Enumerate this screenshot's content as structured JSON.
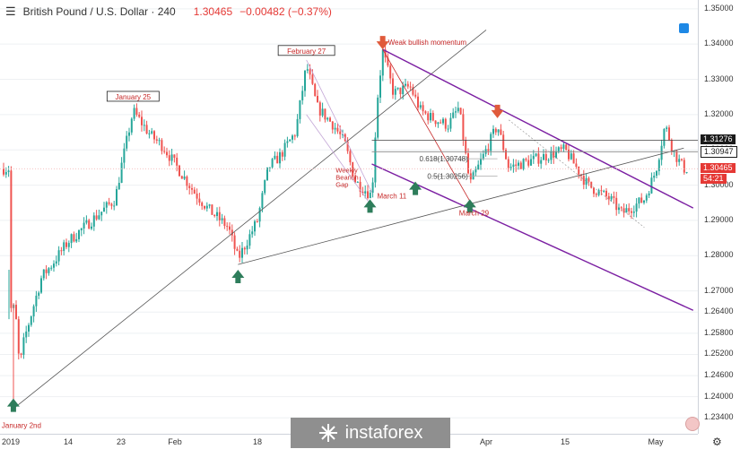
{
  "header": {
    "symbol": "British Pound / U.S. Dollar · 240",
    "last": "1.30465",
    "change": "−0.00482 (−0.37%)"
  },
  "price_tags": {
    "level_1": "1.31276",
    "level_2": "1.30947",
    "current": "1.30465",
    "countdown": "54:21"
  },
  "logo": {
    "text": "instaforex"
  },
  "colors": {
    "bull_candle": "#26a69a",
    "bear_candle": "#ef5350",
    "channel": "#7b1fa2",
    "trendline": "#555555",
    "annotation": "#c62828",
    "arrow_up": "#2e7d5b",
    "arrow_down": "#e05a3a"
  },
  "chart_data": {
    "type": "candlestick",
    "title": "British Pound / U.S. Dollar · 240",
    "ylim": [
      1.2295,
      1.3525
    ],
    "y_ticks": [
      "1.35000",
      "1.34000",
      "1.33000",
      "1.32000",
      "1.31000",
      "1.30000",
      "1.29000",
      "1.28000",
      "1.27000",
      "1.26400",
      "1.25800",
      "1.25200",
      "1.24600",
      "1.24000",
      "1.23400"
    ],
    "x_ticks": [
      "2019",
      "14",
      "23",
      "Feb",
      "18",
      "Apr",
      "15",
      "May"
    ],
    "close_series": [
      {
        "x": "2019-01-02",
        "y": 1.265
      },
      {
        "x": "2019-01-03",
        "y": 1.248
      },
      {
        "x": "2019-01-04",
        "y": 1.256
      },
      {
        "x": "2019-01-08",
        "y": 1.274
      },
      {
        "x": "2019-01-10",
        "y": 1.277
      },
      {
        "x": "2019-01-14",
        "y": 1.284
      },
      {
        "x": "2019-01-16",
        "y": 1.287
      },
      {
        "x": "2019-01-18",
        "y": 1.29
      },
      {
        "x": "2019-01-22",
        "y": 1.296
      },
      {
        "x": "2019-01-23",
        "y": 1.305
      },
      {
        "x": "2019-01-25",
        "y": 1.321
      },
      {
        "x": "2019-01-28",
        "y": 1.314
      },
      {
        "x": "2019-01-30",
        "y": 1.311
      },
      {
        "x": "2019-02-01",
        "y": 1.306
      },
      {
        "x": "2019-02-05",
        "y": 1.298
      },
      {
        "x": "2019-02-08",
        "y": 1.293
      },
      {
        "x": "2019-02-12",
        "y": 1.288
      },
      {
        "x": "2019-02-14",
        "y": 1.279
      },
      {
        "x": "2019-02-18",
        "y": 1.29
      },
      {
        "x": "2019-02-20",
        "y": 1.305
      },
      {
        "x": "2019-02-22",
        "y": 1.308
      },
      {
        "x": "2019-02-25",
        "y": 1.315
      },
      {
        "x": "2019-02-27",
        "y": 1.334
      },
      {
        "x": "2019-03-01",
        "y": 1.322
      },
      {
        "x": "2019-03-04",
        "y": 1.317
      },
      {
        "x": "2019-03-06",
        "y": 1.312
      },
      {
        "x": "2019-03-08",
        "y": 1.301
      },
      {
        "x": "2019-03-11",
        "y": 1.297
      },
      {
        "x": "2019-03-12",
        "y": 1.324
      },
      {
        "x": "2019-03-13",
        "y": 1.338
      },
      {
        "x": "2019-03-15",
        "y": 1.326
      },
      {
        "x": "2019-03-18",
        "y": 1.328
      },
      {
        "x": "2019-03-20",
        "y": 1.321
      },
      {
        "x": "2019-03-22",
        "y": 1.319
      },
      {
        "x": "2019-03-25",
        "y": 1.317
      },
      {
        "x": "2019-03-27",
        "y": 1.322
      },
      {
        "x": "2019-03-29",
        "y": 1.3
      },
      {
        "x": "2019-04-01",
        "y": 1.31
      },
      {
        "x": "2019-04-03",
        "y": 1.317
      },
      {
        "x": "2019-04-05",
        "y": 1.305
      },
      {
        "x": "2019-04-09",
        "y": 1.307
      },
      {
        "x": "2019-04-11",
        "y": 1.308
      },
      {
        "x": "2019-04-15",
        "y": 1.31
      },
      {
        "x": "2019-04-17",
        "y": 1.305
      },
      {
        "x": "2019-04-19",
        "y": 1.3
      },
      {
        "x": "2019-04-23",
        "y": 1.296
      },
      {
        "x": "2019-04-25",
        "y": 1.292
      },
      {
        "x": "2019-04-29",
        "y": 1.296
      },
      {
        "x": "2019-05-01",
        "y": 1.304
      },
      {
        "x": "2019-05-03",
        "y": 1.317
      },
      {
        "x": "2019-05-05",
        "y": 1.309
      },
      {
        "x": "2019-05-07",
        "y": 1.3047
      }
    ],
    "annotations": [
      {
        "text": "January 25",
        "x": "2019-01-25",
        "y": 1.321,
        "boxed": true
      },
      {
        "text": "February 27",
        "x": "2019-02-27",
        "y": 1.334,
        "boxed": true
      },
      {
        "text": "Weak bullish momentum",
        "x": "2019-03-13",
        "y": 1.338
      },
      {
        "text": "Weekly Bearish Gap",
        "x": "2019-03-08",
        "y": 1.299
      },
      {
        "text": "March 11",
        "x": "2019-03-11",
        "y": 1.297
      },
      {
        "text": "March 29",
        "x": "2019-03-29",
        "y": 1.295
      },
      {
        "text": "January 2nd",
        "x": "2019-01-02",
        "y": 1.237
      }
    ],
    "fibonacci": [
      {
        "label": "0.618(1.30748)",
        "value": 1.30748
      },
      {
        "label": "0.5(1.30256)",
        "value": 1.30256
      }
    ],
    "horizontal_levels": [
      1.31276,
      1.30947,
      1.30465
    ]
  }
}
